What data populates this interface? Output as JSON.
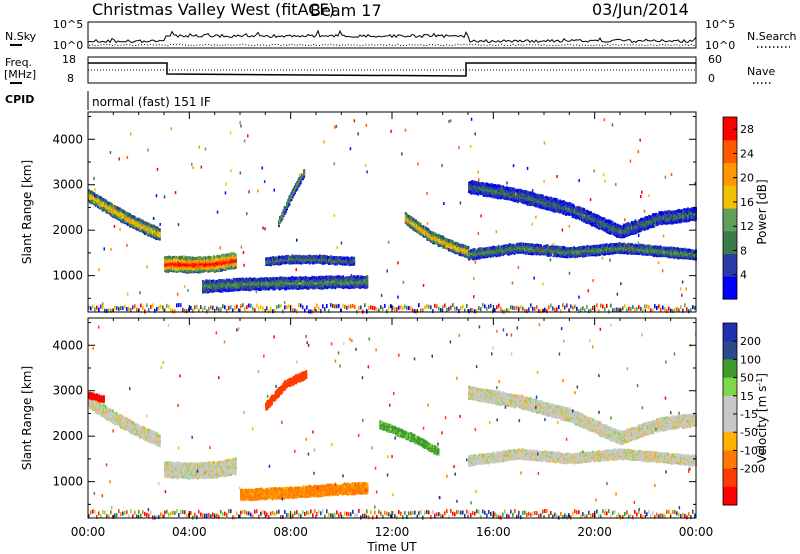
{
  "header": {
    "title": "Christmas Valley West (fitACF)",
    "beam": "Beam 17",
    "date": "03/Jun/2014"
  },
  "nsky_panel": {
    "left_label": "N.Sky",
    "right_label": "N.Search",
    "ticks_left": [
      "10^5",
      "10^0"
    ],
    "ticks_right": [
      "10^5",
      "10^0"
    ]
  },
  "freq_panel": {
    "left_label_1": "Freq.",
    "left_label_2": "[MHz]",
    "right_label": "Nave",
    "ticks_left": [
      "18",
      "8"
    ],
    "ticks_right": [
      "60",
      "0"
    ]
  },
  "cpid": {
    "label": "CPID",
    "mode": "normal (fast) 151 IF"
  },
  "colors": {
    "power_scale": [
      "#0000ff",
      "#2a3aa6",
      "#3c7a4a",
      "#5fa05a",
      "#f2c200",
      "#ff9800",
      "#ff5a00",
      "#ff0000"
    ],
    "velocity_scale": [
      "#1e2fb0",
      "#2b4a8a",
      "#3f9a2d",
      "#7dd84a",
      "#c8c8c8",
      "#c8c8c8",
      "#ffb000",
      "#ff7a00",
      "#ff3c00",
      "#ff0000"
    ],
    "ground_scatter": "#c8c8c8"
  },
  "chart_data": [
    {
      "type": "heatmap",
      "title": "",
      "xlabel": "",
      "ylabel": "Slant Range [km]",
      "x_ticks": [
        "00:00",
        "04:00",
        "08:00",
        "12:00",
        "16:00",
        "20:00",
        "00:00"
      ],
      "y_ticks": [
        "1000",
        "2000",
        "3000",
        "4000"
      ],
      "xlim": [
        0,
        24
      ],
      "ylim": [
        200,
        4600
      ],
      "colorbar": {
        "label": "Power [dB]",
        "ticks": [
          "4",
          "8",
          "12",
          "16",
          "20",
          "24",
          "28"
        ],
        "range": [
          0,
          30
        ]
      },
      "scatter_bands": [
        {
          "t": [
            0.0,
            1.0,
            2.0,
            2.8
          ],
          "r": [
            2800,
            2450,
            2150,
            1950
          ],
          "width": 250,
          "power": 18
        },
        {
          "t": [
            3.0,
            4.0,
            5.0,
            5.8
          ],
          "r": [
            1300,
            1280,
            1300,
            1380
          ],
          "width": 320,
          "power": 26
        },
        {
          "t": [
            4.5,
            6.0,
            8.0,
            10.0,
            11.0
          ],
          "r": [
            800,
            850,
            880,
            900,
            900
          ],
          "width": 240,
          "power": 10
        },
        {
          "t": [
            7.0,
            8.0,
            9.0,
            10.5
          ],
          "r": [
            1350,
            1400,
            1400,
            1350
          ],
          "width": 150,
          "power": 9
        },
        {
          "t": [
            12.5,
            13.5,
            14.5,
            15.0
          ],
          "r": [
            2300,
            1900,
            1650,
            1550
          ],
          "width": 220,
          "power": 18
        },
        {
          "t": [
            15.0,
            17.0,
            19.0,
            21.0,
            24.0
          ],
          "r": [
            1500,
            1650,
            1550,
            1650,
            1500
          ],
          "width": 200,
          "power": 10
        },
        {
          "t": [
            15.0,
            17.0,
            19.0,
            21.0,
            22.5,
            24.0
          ],
          "r": [
            3000,
            2800,
            2500,
            2000,
            2300,
            2400
          ],
          "width": 260,
          "power": 8
        },
        {
          "t": [
            7.5,
            8.0,
            8.5
          ],
          "r": [
            2200,
            2800,
            3300
          ],
          "width": 150,
          "power": 12
        }
      ]
    },
    {
      "type": "heatmap",
      "title": "",
      "xlabel": "Time UT",
      "ylabel": "Slant Range [km]",
      "x_ticks": [
        "00:00",
        "04:00",
        "08:00",
        "12:00",
        "16:00",
        "20:00",
        "00:00"
      ],
      "y_ticks": [
        "1000",
        "2000",
        "3000",
        "4000"
      ],
      "xlim": [
        0,
        24
      ],
      "ylim": [
        200,
        4600
      ],
      "colorbar": {
        "label": "Velocity [m s^-1]",
        "ticks": [
          "200",
          "100",
          "50",
          "15",
          "-15",
          "-50",
          "-100",
          "-200"
        ],
        "range": [
          -250,
          250
        ]
      },
      "scatter_bands": [
        {
          "t": [
            0.0,
            1.0,
            2.0,
            2.8
          ],
          "r": [
            2800,
            2450,
            2150,
            1950
          ],
          "width": 250,
          "velocity": 0
        },
        {
          "t": [
            0.0,
            0.6
          ],
          "r": [
            2950,
            2850
          ],
          "width": 120,
          "velocity": -220
        },
        {
          "t": [
            3.0,
            4.0,
            5.0,
            5.8
          ],
          "r": [
            1300,
            1280,
            1300,
            1380
          ],
          "width": 320,
          "velocity": 0
        },
        {
          "t": [
            6.0,
            8.0,
            10.0,
            11.0
          ],
          "r": [
            750,
            800,
            880,
            900
          ],
          "width": 220,
          "velocity": -60
        },
        {
          "t": [
            7.0,
            7.8,
            8.6
          ],
          "r": [
            2700,
            3200,
            3400
          ],
          "width": 160,
          "velocity": -180
        },
        {
          "t": [
            11.5,
            12.8,
            13.8
          ],
          "r": [
            2300,
            2000,
            1700
          ],
          "width": 150,
          "velocity": 60
        },
        {
          "t": [
            15.0,
            17.0,
            19.0,
            21.0,
            24.0
          ],
          "r": [
            1500,
            1650,
            1550,
            1650,
            1500
          ],
          "width": 200,
          "velocity": 0
        },
        {
          "t": [
            15.0,
            17.0,
            19.0,
            21.0,
            22.5,
            24.0
          ],
          "r": [
            3000,
            2800,
            2500,
            2000,
            2300,
            2400
          ],
          "width": 260,
          "velocity": 0
        }
      ]
    }
  ]
}
